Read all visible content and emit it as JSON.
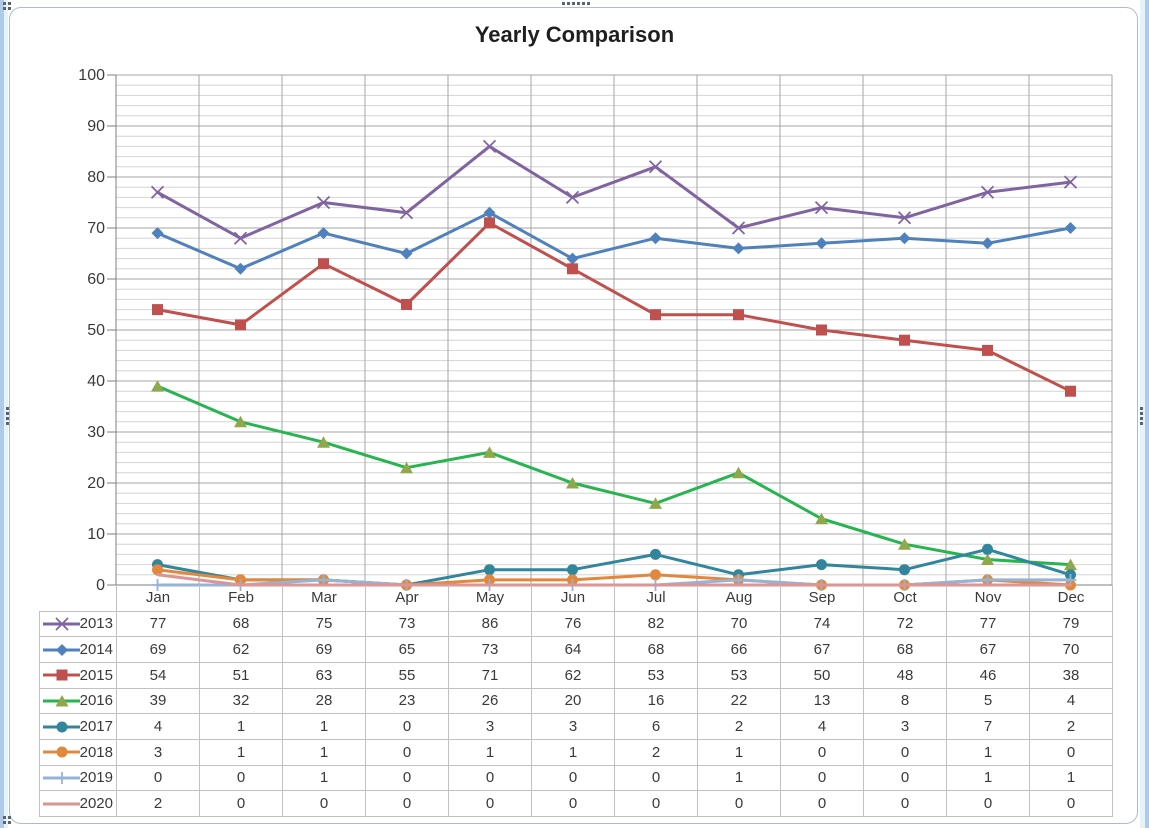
{
  "chart_data": {
    "type": "line",
    "title": "Yearly Comparison",
    "categories": [
      "Jan",
      "Feb",
      "Mar",
      "Apr",
      "May",
      "Jun",
      "Jul",
      "Aug",
      "Sep",
      "Oct",
      "Nov",
      "Dec"
    ],
    "series": [
      {
        "name": "2013",
        "color": "#8064A2",
        "marker": "x",
        "values": [
          77,
          68,
          75,
          73,
          86,
          76,
          82,
          70,
          74,
          72,
          77,
          79
        ]
      },
      {
        "name": "2014",
        "color": "#4F81BD",
        "marker": "diamond",
        "values": [
          69,
          62,
          69,
          65,
          73,
          64,
          68,
          66,
          67,
          68,
          67,
          70
        ]
      },
      {
        "name": "2015",
        "color": "#C0504D",
        "marker": "square",
        "values": [
          54,
          51,
          63,
          55,
          71,
          62,
          53,
          53,
          50,
          48,
          46,
          38
        ]
      },
      {
        "name": "2016",
        "color": "#28B44E",
        "marker": "triangle",
        "marker_color": "#8FA84B",
        "values": [
          39,
          32,
          28,
          23,
          26,
          20,
          16,
          22,
          13,
          8,
          5,
          4
        ]
      },
      {
        "name": "2017",
        "color": "#31859C",
        "marker": "circle",
        "values": [
          4,
          1,
          1,
          0,
          3,
          3,
          6,
          2,
          4,
          3,
          7,
          2
        ]
      },
      {
        "name": "2018",
        "color": "#E2883C",
        "marker": "circle",
        "values": [
          3,
          1,
          1,
          0,
          1,
          1,
          2,
          1,
          0,
          0,
          1,
          0
        ]
      },
      {
        "name": "2019",
        "color": "#95B3D7",
        "marker": "plus",
        "values": [
          0,
          0,
          1,
          0,
          0,
          0,
          0,
          1,
          0,
          0,
          1,
          1
        ]
      },
      {
        "name": "2020",
        "color": "#D99694",
        "marker": "none",
        "values": [
          2,
          0,
          0,
          0,
          0,
          0,
          0,
          0,
          0,
          0,
          0,
          0
        ]
      }
    ],
    "ylim": [
      0,
      100
    ],
    "yticks": [
      0,
      10,
      20,
      30,
      40,
      50,
      60,
      70,
      80,
      90,
      100
    ],
    "ytick_step": 10,
    "minor_gridline_step": 2,
    "grid": true,
    "legend_position": "data-table",
    "colors": {
      "axis_line": "#7F7F7F",
      "major_gridline": "#A6A6A6",
      "minor_gridline": "#D4D4D4",
      "table_border": "#C1C1C1",
      "text": "#3A3A3A"
    }
  }
}
